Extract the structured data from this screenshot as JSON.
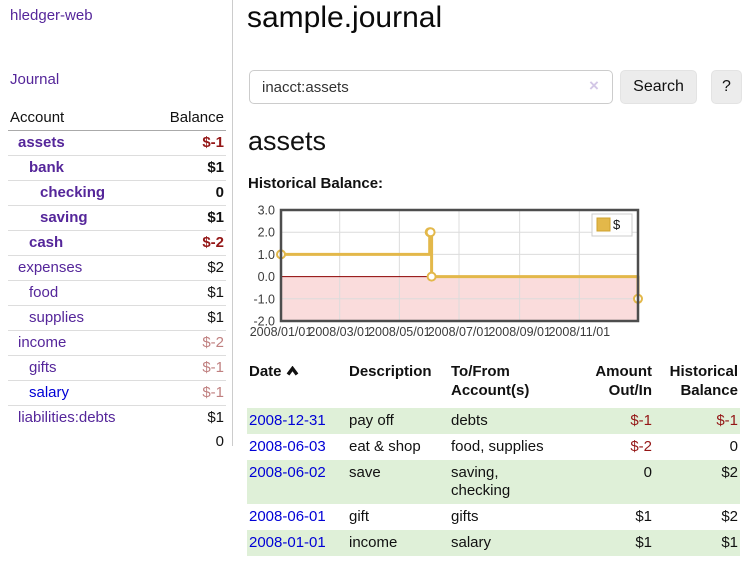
{
  "sidebar": {
    "brand": "hledger-web",
    "nav_journal": "Journal",
    "accounts": {
      "headers": {
        "account": "Account",
        "balance": "Balance"
      },
      "rows": [
        {
          "name": "assets",
          "indent": 1,
          "bold": true,
          "link": "purple",
          "balance": "$-1",
          "balance_class": "neg"
        },
        {
          "name": "bank",
          "indent": 2,
          "bold": true,
          "link": "purple",
          "balance": "$1",
          "balance_class": ""
        },
        {
          "name": "checking",
          "indent": 3,
          "bold": true,
          "link": "purple",
          "balance": "0",
          "balance_class": ""
        },
        {
          "name": "saving",
          "indent": 3,
          "bold": true,
          "link": "purple",
          "balance": "$1",
          "balance_class": ""
        },
        {
          "name": "cash",
          "indent": 2,
          "bold": true,
          "link": "purple",
          "balance": "$-2",
          "balance_class": "neg"
        },
        {
          "name": "expenses",
          "indent": 1,
          "bold": false,
          "link": "purple",
          "balance": "$2",
          "balance_class": ""
        },
        {
          "name": "food",
          "indent": 2,
          "bold": false,
          "link": "purple",
          "balance": "$1",
          "balance_class": ""
        },
        {
          "name": "supplies",
          "indent": 2,
          "bold": false,
          "link": "purple",
          "balance": "$1",
          "balance_class": ""
        },
        {
          "name": "income",
          "indent": 1,
          "bold": false,
          "link": "purple",
          "balance": "$-2",
          "balance_class": "dimneg"
        },
        {
          "name": "gifts",
          "indent": 2,
          "bold": false,
          "link": "purple",
          "balance": "$-1",
          "balance_class": "dimneg"
        },
        {
          "name": "salary",
          "indent": 2,
          "bold": false,
          "link": "blue",
          "balance": "$-1",
          "balance_class": "dimneg"
        },
        {
          "name": "liabilities:debts",
          "indent": 1,
          "bold": false,
          "link": "purple",
          "balance": "$1",
          "balance_class": ""
        }
      ],
      "total": "0"
    }
  },
  "main": {
    "title": "sample.journal",
    "search": {
      "query": "inacct:assets",
      "clear_icon": "×",
      "search_label": "Search",
      "help_label": "?"
    },
    "account_heading": "assets",
    "chart_label": "Historical Balance:"
  },
  "chart_data": {
    "type": "line",
    "step": true,
    "title": "Historical Balance",
    "series": [
      {
        "name": "$",
        "points": [
          [
            "2008-01-01",
            1
          ],
          [
            "2008-06-01",
            2
          ],
          [
            "2008-06-02",
            2
          ],
          [
            "2008-06-03",
            0
          ],
          [
            "2008-12-31",
            -1
          ]
        ]
      }
    ],
    "x_range": [
      "2008-01-01",
      "2008-12-31"
    ],
    "x_ticks": [
      "2008/01/01",
      "2008/03/01",
      "2008/05/01",
      "2008/07/01",
      "2008/09/01",
      "2008/11/01"
    ],
    "y_ticks": [
      3.0,
      2.0,
      1.0,
      0.0,
      -1.0,
      -2.0
    ],
    "ylim": [
      -2,
      3
    ],
    "grid": true,
    "legend_position": "top-right",
    "colors": {
      "series": "#e3b84a",
      "swatch_border": "#cfa22e",
      "marker_fill": "#ffffff",
      "negative_region": "#fadcdc",
      "zero_line": "#8b0000",
      "grid": "#dcdcdc",
      "border": "#4d4d4d",
      "tick_text": "#3c3c3c",
      "legend_border": "#cccccc"
    }
  },
  "register_table": {
    "headers": [
      "Date",
      "Description",
      "To/From Account(s)",
      "Amount Out/In",
      "Historical Balance"
    ],
    "rows": [
      {
        "date": "2008-12-31",
        "description": "pay off",
        "accounts": "debts",
        "amount": "$-1",
        "amount_class": "neg",
        "balance": "$-1",
        "balance_class": "neg"
      },
      {
        "date": "2008-06-03",
        "description": "eat & shop",
        "accounts": "food, supplies",
        "amount": "$-2",
        "amount_class": "neg",
        "balance": "0",
        "balance_class": ""
      },
      {
        "date": "2008-06-02",
        "description": "save",
        "accounts": "saving,\nchecking",
        "amount": "0",
        "amount_class": "",
        "balance": "$2",
        "balance_class": ""
      },
      {
        "date": "2008-06-01",
        "description": "gift",
        "accounts": "gifts",
        "amount": "$1",
        "amount_class": "",
        "balance": "$2",
        "balance_class": ""
      },
      {
        "date": "2008-01-01",
        "description": "income",
        "accounts": "salary",
        "amount": "$1",
        "amount_class": "",
        "balance": "$1",
        "balance_class": ""
      }
    ]
  }
}
